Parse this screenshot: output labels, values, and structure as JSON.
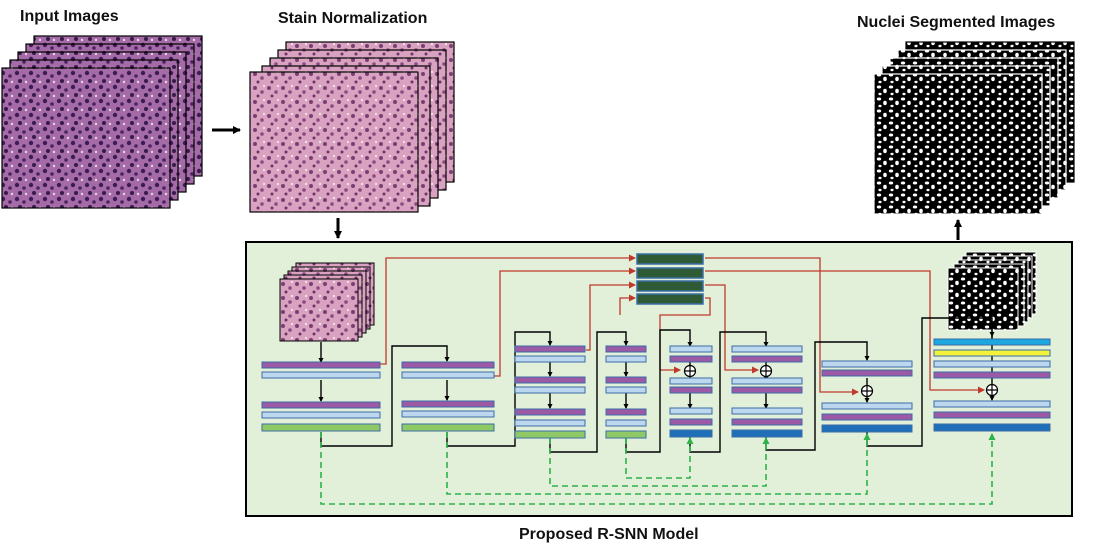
{
  "labels": {
    "input_images": "Input Images",
    "stain_normalization": "Stain Normalization",
    "nuclei_segmented": "Nuclei Segmented Images",
    "model": "Proposed R-SNN Model"
  },
  "colors": {
    "panel_bg": "#e2efd9",
    "purple": "#9b59a6",
    "light_blue": "#bdd7ee",
    "green": "#8fc965",
    "dark_blue": "#1f6fb8",
    "cyan": "#1ca7e0",
    "yellow": "#f2f23a",
    "dark_green": "#2e5a35",
    "skip_red": "#c0392b",
    "dashed_green": "#2db34a",
    "he_stain": "#8a4f88",
    "normalized_stain": "#c07fa3"
  },
  "icons": [
    "arrow-right-icon",
    "arrow-down-icon",
    "arrow-up-icon",
    "sum-node-icon"
  ]
}
